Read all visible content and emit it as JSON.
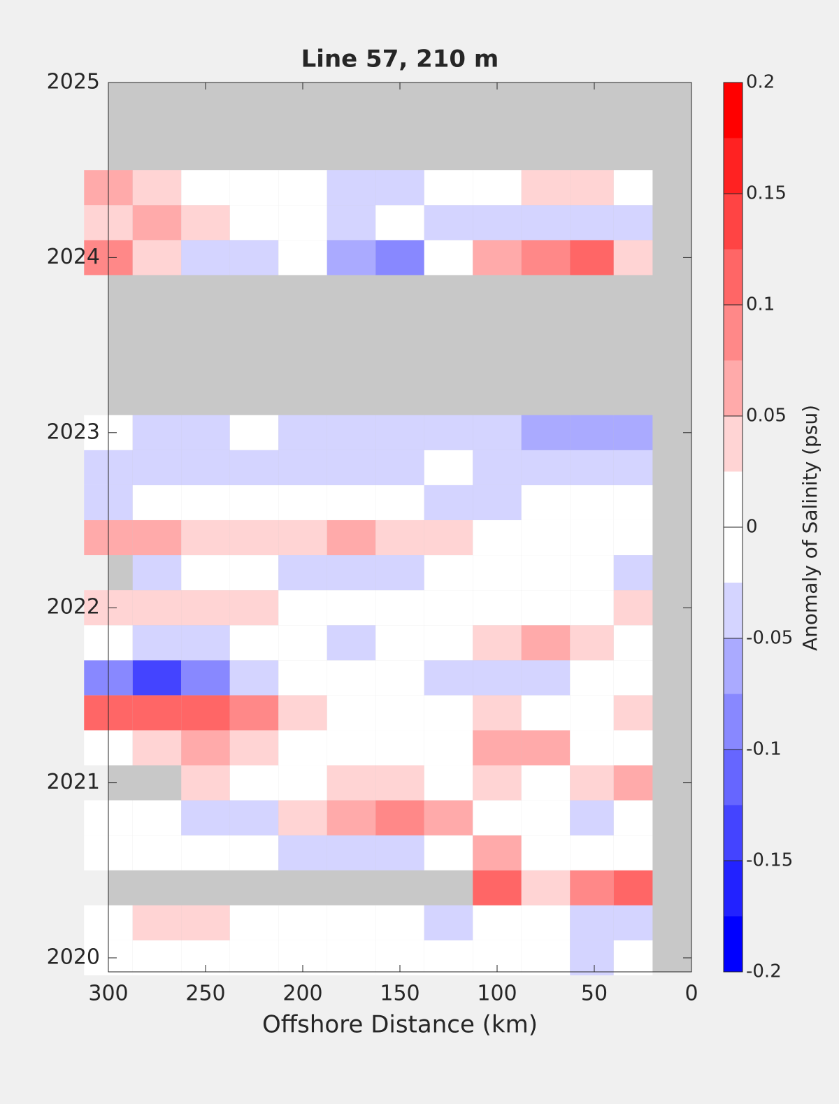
{
  "chart_data": {
    "type": "contour",
    "title": "Line 57, 210 m",
    "xlabel": "Offshore Distance (km)",
    "colorbar_label": "Anomaly of Salinity (psu)",
    "xlim": [
      300,
      0
    ],
    "xticks": [
      300,
      250,
      200,
      150,
      100,
      50,
      0
    ],
    "ylim": [
      2019.92,
      2025
    ],
    "yticks": [
      2020,
      2021,
      2022,
      2023,
      2024,
      2025
    ],
    "x": [
      300,
      275,
      250,
      225,
      200,
      175,
      150,
      125,
      100,
      75,
      50,
      30
    ],
    "y": [
      2020.0,
      2020.2,
      2020.4,
      2020.6,
      2020.8,
      2021.0,
      2021.2,
      2021.4,
      2021.6,
      2021.8,
      2022.0,
      2022.2,
      2022.4,
      2022.6,
      2022.8,
      2023.0,
      2023.2,
      2023.4,
      2023.6,
      2023.8,
      2024.0,
      2024.2,
      2024.4
    ],
    "z": [
      [
        0,
        0,
        0,
        0,
        0,
        0,
        0,
        0,
        0,
        0,
        -0.03,
        0
      ],
      [
        0,
        0.03,
        0.03,
        0,
        0,
        0,
        0,
        -0.03,
        0,
        0,
        -0.04,
        -0.03
      ],
      [
        null,
        null,
        null,
        null,
        null,
        null,
        null,
        null,
        0.1,
        0.03,
        0.08,
        0.1
      ],
      [
        0,
        0,
        0,
        0,
        -0.03,
        -0.03,
        -0.03,
        0,
        0.05,
        0,
        0,
        0
      ],
      [
        0,
        0,
        -0.04,
        -0.05,
        0.03,
        0.06,
        0.08,
        0.06,
        0,
        0,
        -0.05,
        0
      ],
      [
        null,
        null,
        0.03,
        0,
        0,
        0.03,
        0.03,
        0,
        0.03,
        0,
        0.03,
        0.05
      ],
      [
        0,
        0.03,
        0.06,
        0.03,
        0,
        0,
        0,
        0,
        0.07,
        0.05,
        0,
        0
      ],
      [
        0.1,
        0.12,
        0.12,
        0.08,
        0.04,
        0,
        0,
        0,
        0.03,
        0,
        0,
        0.03
      ],
      [
        -0.08,
        -0.13,
        -0.08,
        -0.04,
        0,
        0,
        0,
        -0.03,
        -0.03,
        -0.03,
        0,
        0
      ],
      [
        0,
        -0.03,
        -0.03,
        0,
        0,
        -0.04,
        0,
        0,
        0.04,
        0.05,
        0.03,
        0
      ],
      [
        0.03,
        0.03,
        0.03,
        0.04,
        0,
        0,
        0,
        0,
        0,
        0,
        0,
        0.03
      ],
      [
        null,
        -0.03,
        0,
        0,
        -0.04,
        -0.04,
        -0.03,
        0,
        0,
        0,
        0,
        -0.03
      ],
      [
        0.07,
        0.07,
        0.04,
        0.03,
        0.04,
        0.07,
        0.04,
        0.03,
        0,
        0,
        0,
        0
      ],
      [
        -0.03,
        0,
        0,
        0,
        0,
        0,
        0,
        -0.03,
        -0.03,
        0,
        0,
        0
      ],
      [
        -0.03,
        -0.04,
        -0.04,
        -0.03,
        -0.03,
        -0.05,
        -0.05,
        0,
        -0.05,
        -0.04,
        -0.03,
        -0.03
      ],
      [
        0,
        -0.03,
        -0.03,
        0,
        -0.03,
        -0.04,
        -0.04,
        -0.04,
        -0.03,
        -0.06,
        -0.07,
        -0.07
      ],
      [
        null,
        null,
        null,
        null,
        null,
        null,
        null,
        null,
        null,
        null,
        null,
        null
      ],
      [
        null,
        null,
        null,
        null,
        null,
        null,
        null,
        null,
        null,
        null,
        null,
        null
      ],
      [
        null,
        null,
        null,
        null,
        null,
        null,
        null,
        null,
        null,
        null,
        null,
        null
      ],
      [
        null,
        null,
        null,
        null,
        null,
        null,
        null,
        null,
        null,
        null,
        null,
        null
      ],
      [
        0.08,
        0.03,
        -0.04,
        -0.03,
        0,
        -0.06,
        -0.08,
        0,
        0.05,
        0.08,
        0.1,
        0.04
      ],
      [
        0.04,
        0.06,
        0.04,
        0,
        0,
        -0.03,
        0,
        -0.03,
        -0.05,
        -0.04,
        -0.05,
        -0.05
      ],
      [
        0.06,
        0.03,
        0,
        0,
        0,
        -0.05,
        -0.03,
        0,
        0,
        0.03,
        0.03,
        0
      ]
    ],
    "missing_color": "#c8c8c8",
    "clim": [
      -0.2,
      0.2
    ],
    "cticks": [
      -0.2,
      -0.15,
      -0.1,
      -0.05,
      0,
      0.05,
      0.1,
      0.15,
      0.2
    ],
    "colors": [
      "#0000ff",
      "#2222ff",
      "#4444ff",
      "#6666ff",
      "#8888ff",
      "#aaaaff",
      "#d4d4ff",
      "#ffffff",
      "#ffffff",
      "#ffd4d4",
      "#ffaaaa",
      "#ff8888",
      "#ff6666",
      "#ff4444",
      "#ff2222",
      "#ff0000"
    ]
  }
}
